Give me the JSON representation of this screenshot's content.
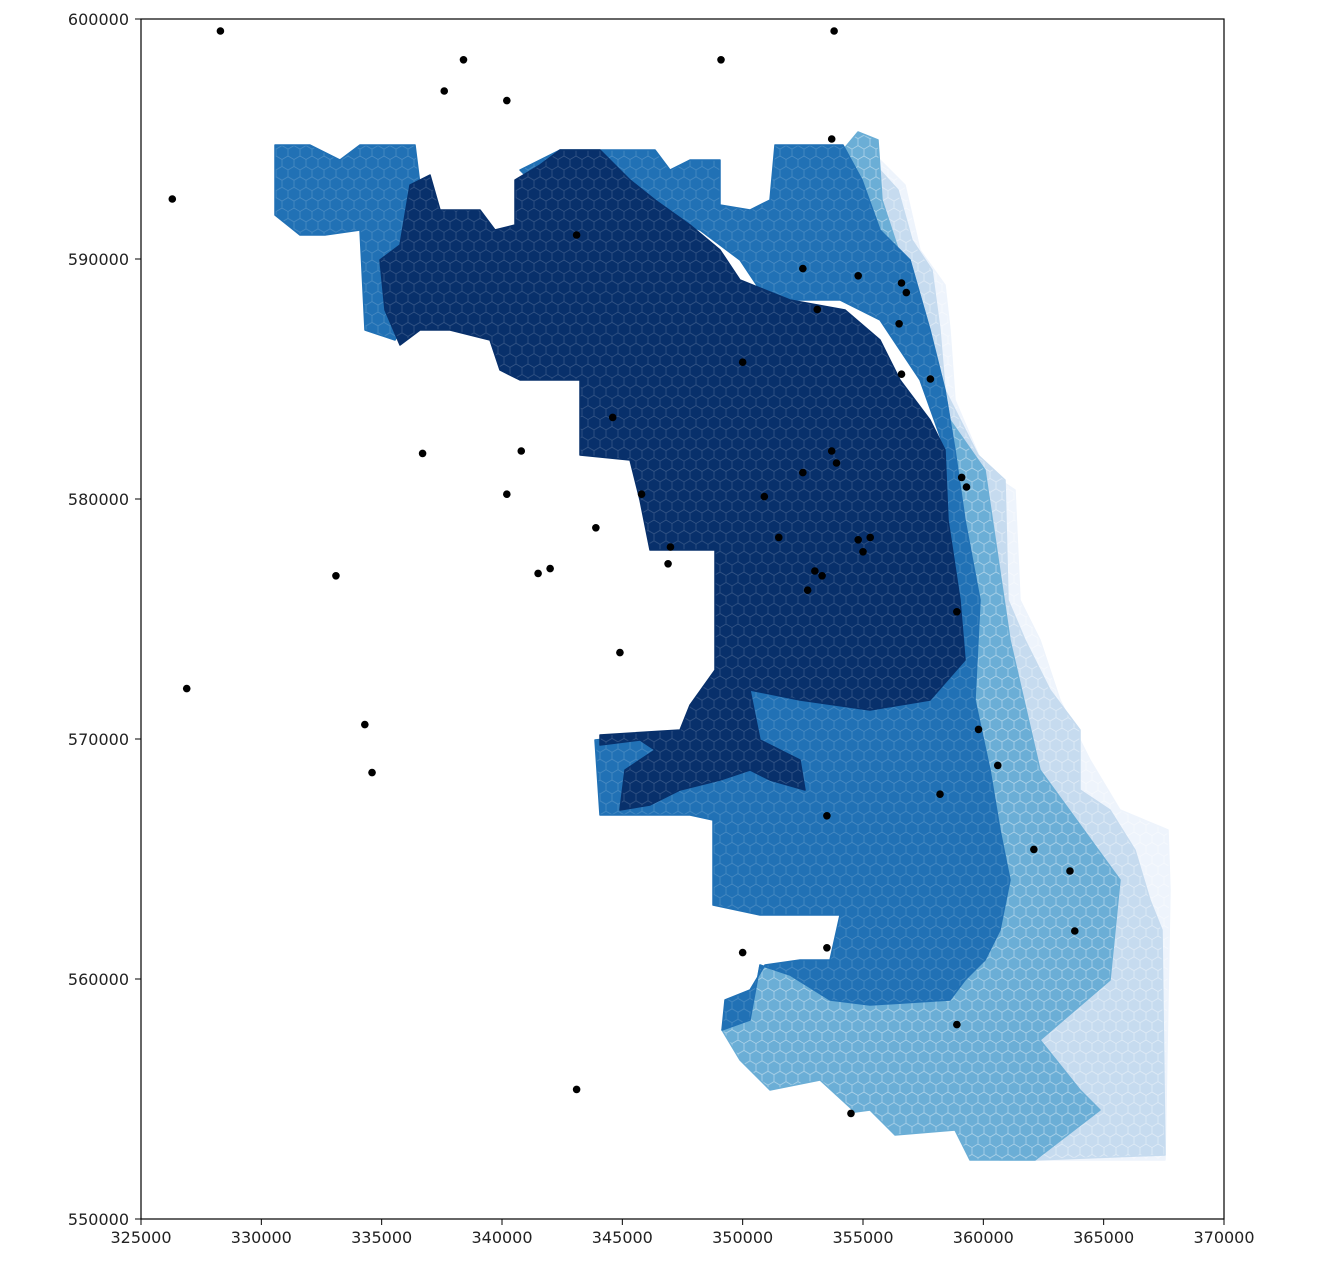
{
  "chart_data": {
    "type": "scatter",
    "title": "",
    "xlabel": "",
    "ylabel": "",
    "xlim": [
      325000,
      370000
    ],
    "ylim": [
      550000,
      600000
    ],
    "x_ticks": [
      "325000",
      "330000",
      "335000",
      "340000",
      "345000",
      "350000",
      "355000",
      "360000",
      "365000",
      "370000"
    ],
    "y_ticks": [
      "550000",
      "560000",
      "570000",
      "580000",
      "590000",
      "600000"
    ],
    "grid": false,
    "background_layer": {
      "kind": "hexbin choropleth",
      "colormap": "Blues",
      "classes": [
        {
          "level": 1,
          "color": "#eef4fc"
        },
        {
          "level": 2,
          "color": "#c6dbef"
        },
        {
          "level": 3,
          "color": "#6baed6"
        },
        {
          "level": 4,
          "color": "#2171b5"
        },
        {
          "level": 5,
          "color": "#08306b"
        }
      ]
    },
    "series": [
      {
        "marker_color": "#000000",
        "points": [
          [
            328300,
            599500
          ],
          [
            353800,
            599500
          ],
          [
            338400,
            598300
          ],
          [
            349100,
            598300
          ],
          [
            337600,
            597000
          ],
          [
            340200,
            596600
          ],
          [
            326300,
            592500
          ],
          [
            353700,
            595000
          ],
          [
            343100,
            591000
          ],
          [
            352500,
            589600
          ],
          [
            354800,
            589300
          ],
          [
            356600,
            589000
          ],
          [
            356800,
            588600
          ],
          [
            353100,
            587900
          ],
          [
            356500,
            587300
          ],
          [
            350000,
            585700
          ],
          [
            356600,
            585200
          ],
          [
            357800,
            585000
          ],
          [
            344600,
            583400
          ],
          [
            336700,
            581900
          ],
          [
            340800,
            582000
          ],
          [
            353700,
            582000
          ],
          [
            353900,
            581500
          ],
          [
            352500,
            581100
          ],
          [
            359100,
            580900
          ],
          [
            359300,
            580500
          ],
          [
            340200,
            580200
          ],
          [
            345800,
            580200
          ],
          [
            350900,
            580100
          ],
          [
            343900,
            578800
          ],
          [
            351500,
            578400
          ],
          [
            354800,
            578300
          ],
          [
            355300,
            578400
          ],
          [
            347000,
            578000
          ],
          [
            346900,
            577300
          ],
          [
            342000,
            577100
          ],
          [
            341500,
            576900
          ],
          [
            353000,
            577000
          ],
          [
            353300,
            576800
          ],
          [
            333100,
            576800
          ],
          [
            352700,
            576200
          ],
          [
            355000,
            577800
          ],
          [
            358900,
            575300
          ],
          [
            344900,
            573600
          ],
          [
            326900,
            572100
          ],
          [
            334300,
            570600
          ],
          [
            359800,
            570400
          ],
          [
            334600,
            568600
          ],
          [
            360600,
            568900
          ],
          [
            358200,
            567700
          ],
          [
            353500,
            566800
          ],
          [
            362100,
            565400
          ],
          [
            363600,
            564500
          ],
          [
            363800,
            562000
          ],
          [
            353500,
            561300
          ],
          [
            350000,
            561100
          ],
          [
            358900,
            558100
          ],
          [
            343100,
            555400
          ],
          [
            354500,
            554400
          ]
        ]
      }
    ]
  }
}
